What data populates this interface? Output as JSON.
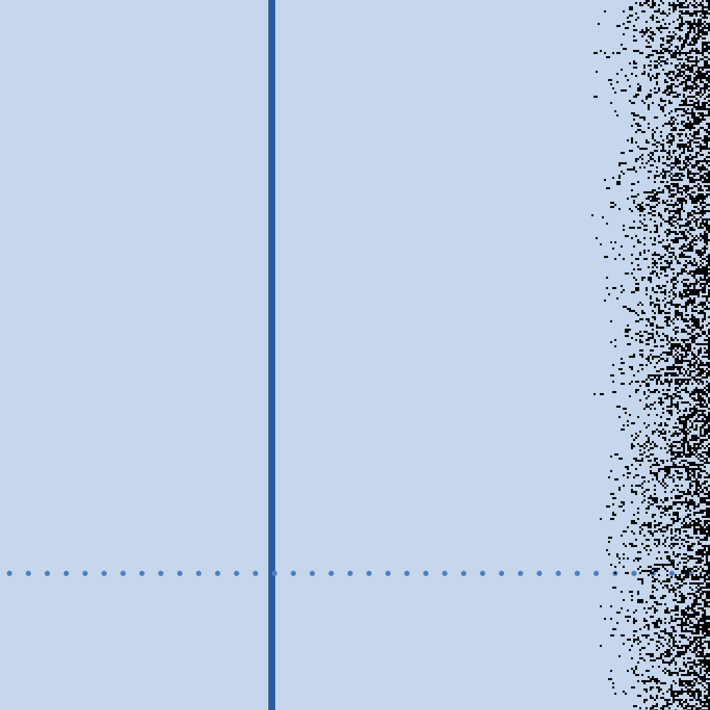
{
  "colors": {
    "background": "#c6d6ec",
    "vertical_line": "#2b5d9e",
    "dotted_line": "#4f7fbe",
    "noise": "#000000"
  },
  "elements": {
    "vertical_line": "solid-line",
    "horizontal_line": "dotted-line",
    "texture": "black-pixel-noise"
  }
}
